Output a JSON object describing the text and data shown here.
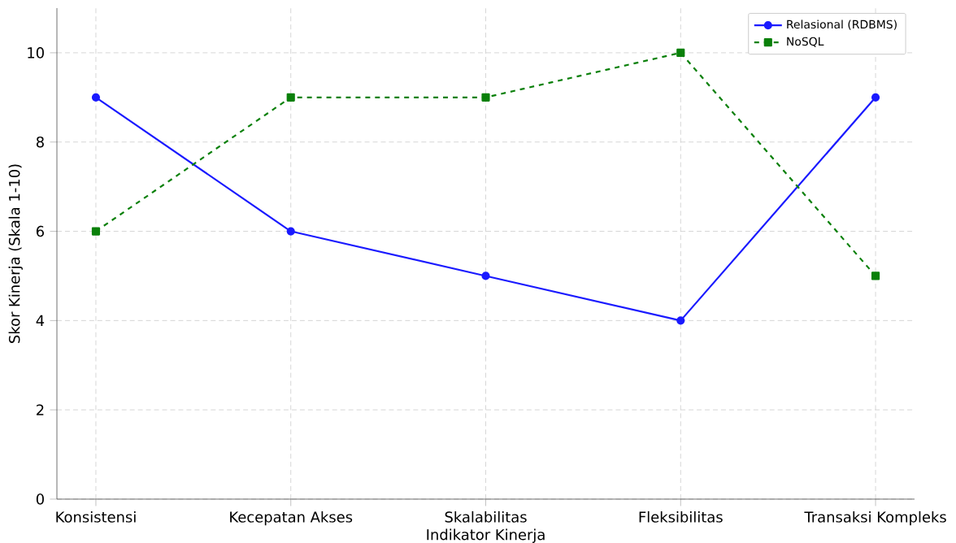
{
  "chart_data": {
    "type": "line",
    "xlabel": "Indikator Kinerja",
    "ylabel": "Skor Kinerja (Skala 1-10)",
    "categories": [
      "Konsistensi",
      "Kecepatan Akses",
      "Skalabilitas",
      "Fleksibilitas",
      "Transaksi Kompleks"
    ],
    "series": [
      {
        "name": "Relasional (RDBMS)",
        "color": "#1a1aff",
        "values": [
          9,
          6,
          5,
          4,
          9
        ],
        "marker": "circle",
        "line_style": "solid"
      },
      {
        "name": "NoSQL",
        "color": "#0a800a",
        "values": [
          6,
          9,
          9,
          10,
          5
        ],
        "marker": "square",
        "line_style": "dashed"
      }
    ],
    "ylim": [
      0,
      11
    ],
    "yticks": [
      0,
      2,
      4,
      6,
      8,
      10
    ],
    "grid": true,
    "legend": "top right"
  }
}
